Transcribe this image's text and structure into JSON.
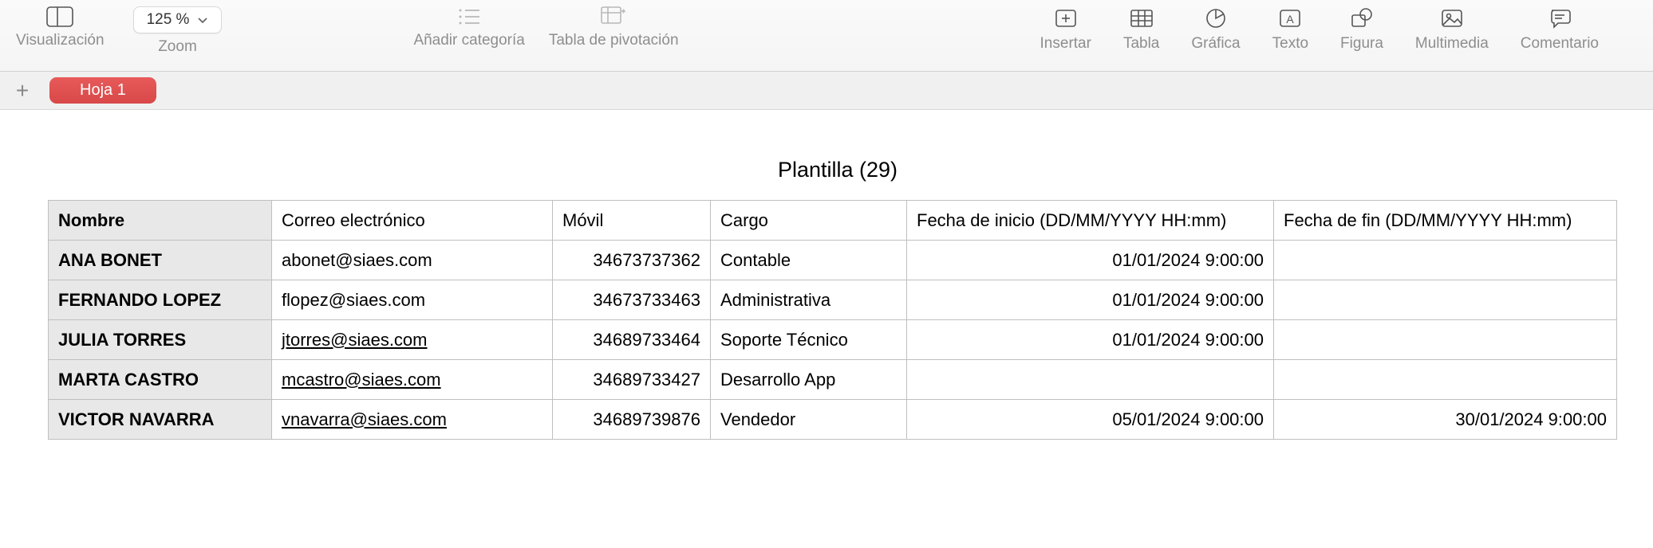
{
  "toolbar": {
    "visualization_label": "Visualización",
    "zoom_value": "125 %",
    "zoom_label": "Zoom",
    "add_category_label": "Añadir categoría",
    "pivot_table_label": "Tabla de pivotación",
    "insert_label": "Insertar",
    "table_label": "Tabla",
    "chart_label": "Gráfica",
    "text_label": "Texto",
    "shape_label": "Figura",
    "media_label": "Multimedia",
    "comment_label": "Comentario"
  },
  "sheets": {
    "active": "Hoja 1"
  },
  "table": {
    "title": "Plantilla (29)",
    "columns": {
      "nombre": "Nombre",
      "correo": "Correo electrónico",
      "movil": "Móvil",
      "cargo": "Cargo",
      "inicio": "Fecha de inicio (DD/MM/YYYY HH:mm)",
      "fin": "Fecha de fin (DD/MM/YYYY HH:mm)"
    },
    "rows": [
      {
        "nombre": "ANA BONET",
        "correo": "abonet@siaes.com",
        "correo_link": false,
        "movil": "34673737362",
        "cargo": "Contable",
        "inicio": "01/01/2024 9:00:00",
        "fin": ""
      },
      {
        "nombre": "FERNANDO LOPEZ",
        "correo": "flopez@siaes.com",
        "correo_link": false,
        "movil": "34673733463",
        "cargo": "Administrativa",
        "inicio": "01/01/2024 9:00:00",
        "fin": ""
      },
      {
        "nombre": "JULIA TORRES",
        "correo": "jtorres@siaes.com",
        "correo_link": true,
        "movil": "34689733464",
        "cargo": "Soporte Técnico",
        "inicio": "01/01/2024 9:00:00",
        "fin": ""
      },
      {
        "nombre": "MARTA CASTRO",
        "correo": "mcastro@siaes.com",
        "correo_link": true,
        "movil": "34689733427",
        "cargo": "Desarrollo App",
        "inicio": "",
        "fin": ""
      },
      {
        "nombre": "VICTOR NAVARRA",
        "correo": "vnavarra@siaes.com",
        "correo_link": true,
        "movil": "34689739876",
        "cargo": "Vendedor",
        "inicio": "05/01/2024 9:00:00",
        "fin": "30/01/2024 9:00:00"
      }
    ]
  }
}
